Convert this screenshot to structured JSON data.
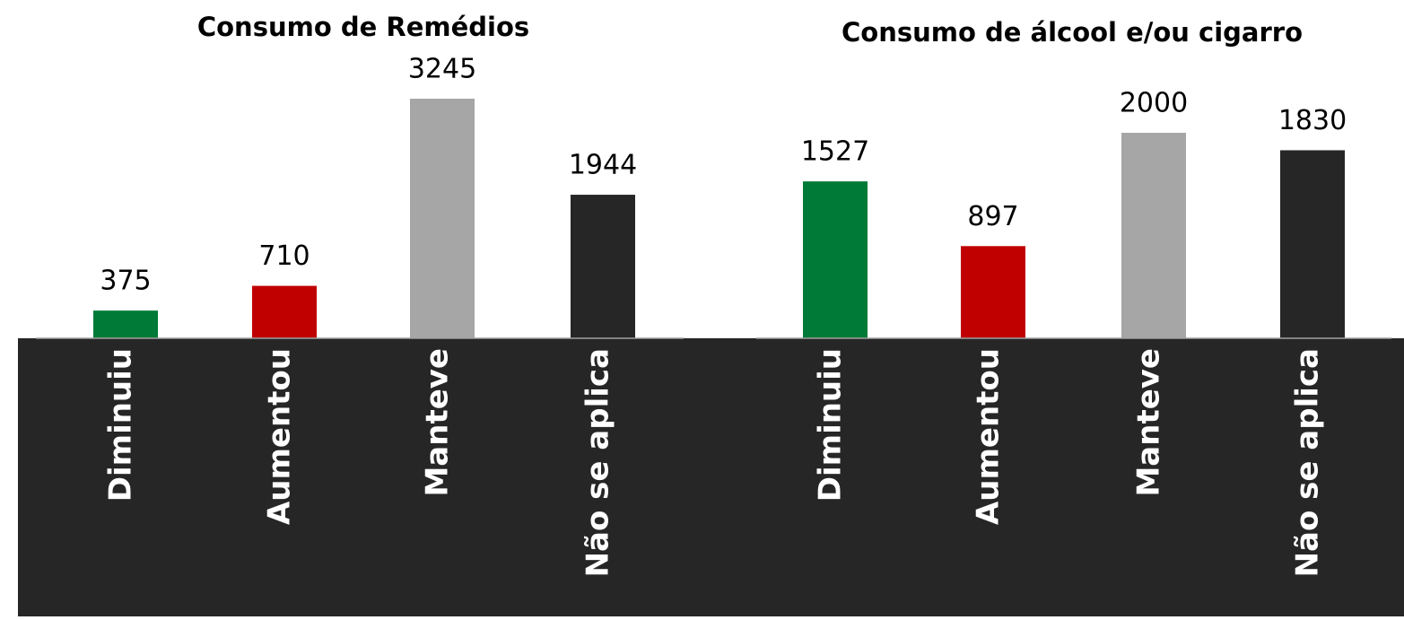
{
  "chart_data": [
    {
      "type": "bar",
      "title": "Consumo de Remédios",
      "categories": [
        "Diminuiu",
        "Aumentou",
        "Manteve",
        "Não se aplica"
      ],
      "values": [
        375,
        710,
        3245,
        1944
      ],
      "colors": [
        "#007a37",
        "#c00000",
        "#a6a6a6",
        "#262626"
      ]
    },
    {
      "type": "bar",
      "title": "Consumo de álcool e/ou cigarro",
      "categories": [
        "Diminuiu",
        "Aumentou",
        "Manteve",
        "Não se aplica"
      ],
      "values": [
        1527,
        897,
        2000,
        1830
      ],
      "colors": [
        "#007a37",
        "#c00000",
        "#a6a6a6",
        "#262626"
      ]
    }
  ]
}
